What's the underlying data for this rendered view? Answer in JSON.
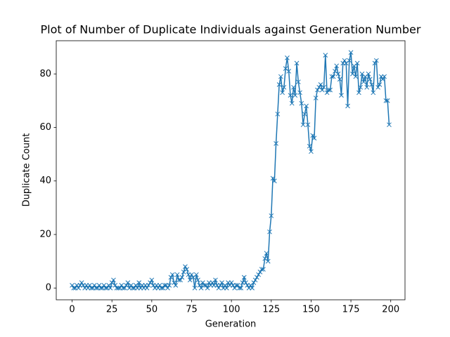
{
  "chart_data": {
    "type": "line",
    "title": "Plot of Number of Duplicate Individuals against Generation Number",
    "xlabel": "Generation",
    "ylabel": "Duplicate Count",
    "x": [
      0,
      1,
      2,
      3,
      4,
      5,
      6,
      7,
      8,
      9,
      10,
      11,
      12,
      13,
      14,
      15,
      16,
      17,
      18,
      19,
      20,
      21,
      22,
      23,
      24,
      25,
      26,
      27,
      28,
      29,
      30,
      31,
      32,
      33,
      34,
      35,
      36,
      37,
      38,
      39,
      40,
      41,
      42,
      43,
      44,
      45,
      46,
      47,
      48,
      49,
      50,
      51,
      52,
      53,
      54,
      55,
      56,
      57,
      58,
      59,
      60,
      61,
      62,
      63,
      64,
      65,
      66,
      67,
      68,
      69,
      70,
      71,
      72,
      73,
      74,
      75,
      76,
      77,
      78,
      79,
      80,
      81,
      82,
      83,
      84,
      85,
      86,
      87,
      88,
      89,
      90,
      91,
      92,
      93,
      94,
      95,
      96,
      97,
      98,
      99,
      100,
      101,
      102,
      103,
      104,
      105,
      106,
      107,
      108,
      109,
      110,
      111,
      112,
      113,
      114,
      115,
      116,
      117,
      118,
      119,
      120,
      121,
      122,
      123,
      124,
      125,
      126,
      127,
      128,
      129,
      130,
      131,
      132,
      133,
      134,
      135,
      136,
      137,
      138,
      139,
      140,
      141,
      142,
      143,
      144,
      145,
      146,
      147,
      148,
      149,
      150,
      151,
      152,
      153,
      154,
      155,
      156,
      157,
      158,
      159,
      160,
      161,
      162,
      163,
      164,
      165,
      166,
      167,
      168,
      169,
      170,
      171,
      172,
      173,
      174,
      175,
      176,
      177,
      178,
      179,
      180,
      181,
      182,
      183,
      184,
      185,
      186,
      187,
      188,
      189,
      190,
      191,
      192,
      193,
      194,
      195,
      196,
      197,
      198,
      199
    ],
    "series": [
      {
        "color": "#1f77b4",
        "marker": "x",
        "values": [
          1,
          0,
          0,
          1,
          0,
          1,
          2,
          1,
          0,
          1,
          0,
          1,
          0,
          0,
          1,
          0,
          0,
          1,
          0,
          0,
          1,
          0,
          0,
          1,
          0,
          2,
          3,
          1,
          0,
          0,
          0,
          1,
          0,
          0,
          1,
          2,
          0,
          1,
          0,
          0,
          1,
          0,
          2,
          0,
          1,
          0,
          1,
          0,
          1,
          2,
          3,
          1,
          0,
          1,
          0,
          1,
          0,
          0,
          1,
          1,
          0,
          1,
          4,
          5,
          2,
          1,
          5,
          3,
          3,
          4,
          6,
          8,
          7,
          5,
          3,
          5,
          4,
          0,
          5,
          3,
          1,
          0,
          2,
          1,
          1,
          0,
          2,
          1,
          2,
          1,
          3,
          1,
          0,
          1,
          2,
          0,
          1,
          0,
          2,
          1,
          2,
          1,
          0,
          1,
          1,
          0,
          0,
          2,
          4,
          2,
          1,
          0,
          1,
          0,
          2,
          3,
          4,
          5,
          6,
          7,
          7,
          11,
          13,
          10,
          21,
          27,
          41,
          40,
          54,
          65,
          76,
          79,
          73,
          75,
          82,
          86,
          81,
          72,
          69,
          75,
          72,
          84,
          77,
          73,
          69,
          61,
          65,
          68,
          61,
          53,
          51,
          57,
          56,
          71,
          74,
          75,
          76,
          74,
          75,
          87,
          73,
          74,
          74,
          79,
          79,
          81,
          83,
          80,
          78,
          72,
          84,
          85,
          84,
          68,
          85,
          88,
          80,
          83,
          79,
          84,
          73,
          75,
          80,
          77,
          79,
          75,
          80,
          78,
          76,
          73,
          84,
          85,
          75,
          76,
          79,
          78,
          79,
          70,
          70,
          61
        ]
      }
    ],
    "xlim": [
      -9.95,
      208.95
    ],
    "ylim": [
      -4.4,
      92.4
    ],
    "xticks": [
      0,
      25,
      50,
      75,
      100,
      125,
      150,
      175,
      200
    ],
    "yticks": [
      0,
      20,
      40,
      60,
      80
    ],
    "grid": false
  }
}
